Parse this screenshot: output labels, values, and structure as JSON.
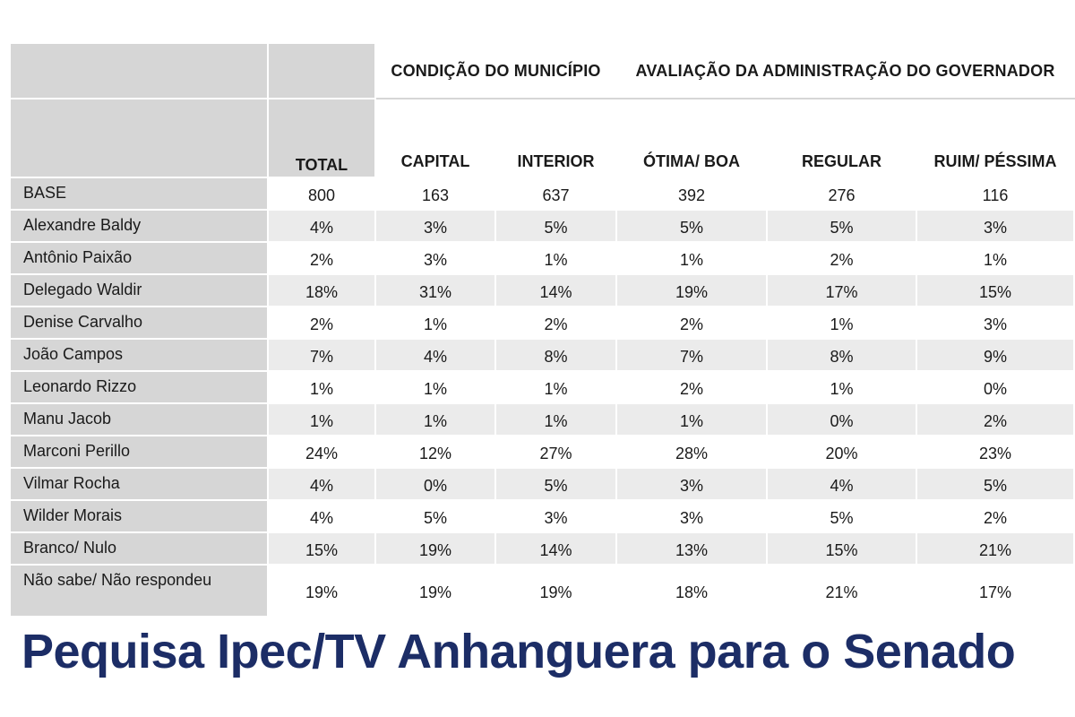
{
  "header": {
    "group_municipio": "CONDIÇÃO DO MUNICÍPIO",
    "group_avaliacao": "AVALIAÇÃO DA ADMINISTRAÇÃO DO GOVERNADOR",
    "columns": [
      "TOTAL",
      "CAPITAL",
      "INTERIOR",
      "ÓTIMA/ BOA",
      "REGULAR",
      "RUIM/ PÉSSIMA"
    ]
  },
  "rows": [
    {
      "label": "BASE",
      "values": [
        "800",
        "163",
        "637",
        "392",
        "276",
        "116"
      ]
    },
    {
      "label": "Alexandre Baldy",
      "values": [
        "4%",
        "3%",
        "5%",
        "5%",
        "5%",
        "3%"
      ]
    },
    {
      "label": "Antônio Paixão",
      "values": [
        "2%",
        "3%",
        "1%",
        "1%",
        "2%",
        "1%"
      ]
    },
    {
      "label": "Delegado Waldir",
      "values": [
        "18%",
        "31%",
        "14%",
        "19%",
        "17%",
        "15%"
      ]
    },
    {
      "label": "Denise Carvalho",
      "values": [
        "2%",
        "1%",
        "2%",
        "2%",
        "1%",
        "3%"
      ]
    },
    {
      "label": "João Campos",
      "values": [
        "7%",
        "4%",
        "8%",
        "7%",
        "8%",
        "9%"
      ]
    },
    {
      "label": "Leonardo Rizzo",
      "values": [
        "1%",
        "1%",
        "1%",
        "2%",
        "1%",
        "0%"
      ]
    },
    {
      "label": "Manu Jacob",
      "values": [
        "1%",
        "1%",
        "1%",
        "1%",
        "0%",
        "2%"
      ]
    },
    {
      "label": "Marconi Perillo",
      "values": [
        "24%",
        "12%",
        "27%",
        "28%",
        "20%",
        "23%"
      ]
    },
    {
      "label": "Vilmar Rocha",
      "values": [
        "4%",
        "0%",
        "5%",
        "3%",
        "4%",
        "5%"
      ]
    },
    {
      "label": "Wilder Morais",
      "values": [
        "4%",
        "5%",
        "3%",
        "3%",
        "5%",
        "2%"
      ]
    },
    {
      "label": "Branco/ Nulo",
      "values": [
        "15%",
        "19%",
        "14%",
        "13%",
        "15%",
        "21%"
      ]
    },
    {
      "label": "Não sabe/ Não respondeu",
      "values": [
        "19%",
        "19%",
        "19%",
        "18%",
        "21%",
        "17%"
      ]
    }
  ],
  "caption": "Pequisa Ipec/TV Anhanguera para o Senado",
  "colors": {
    "header_gray": "#d6d6d6",
    "stripe_gray": "#ebebeb",
    "caption_blue": "#1c2d66"
  }
}
